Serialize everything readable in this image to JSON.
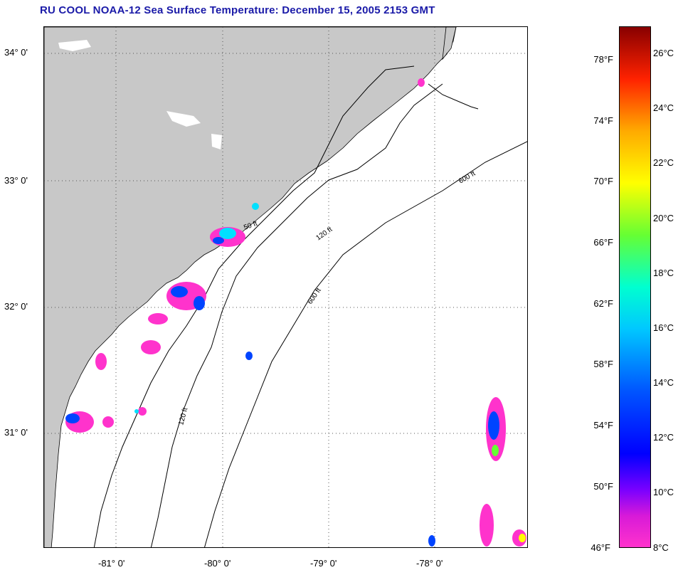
{
  "title": "RU COOL  NOAA-12  Sea Surface Temperature:  December 15, 2005 2153 GMT",
  "latitude_labels": [
    "34° 0'",
    "33° 0'",
    "32° 0'",
    "31° 0'"
  ],
  "longitude_labels": [
    "-81° 0'",
    "-80° 0'",
    "-79° 0'",
    "-78° 0'"
  ],
  "colorbar": {
    "fahrenheit": [
      "78°F",
      "74°F",
      "70°F",
      "66°F",
      "62°F",
      "58°F",
      "54°F",
      "50°F",
      "46°F"
    ],
    "celsius": [
      "26°C",
      "24°C",
      "22°C",
      "20°C",
      "18°C",
      "16°C",
      "14°C",
      "12°C",
      "10°C",
      "8°C"
    ]
  },
  "depth_labels": [
    "50 ft",
    "120 ft",
    "600 ft"
  ],
  "colors": {
    "land": "#c8c8c8",
    "title": "#1a1aa8",
    "cold": "#ff33cc",
    "cool": "#0044ff",
    "mild": "#00e0ff"
  }
}
